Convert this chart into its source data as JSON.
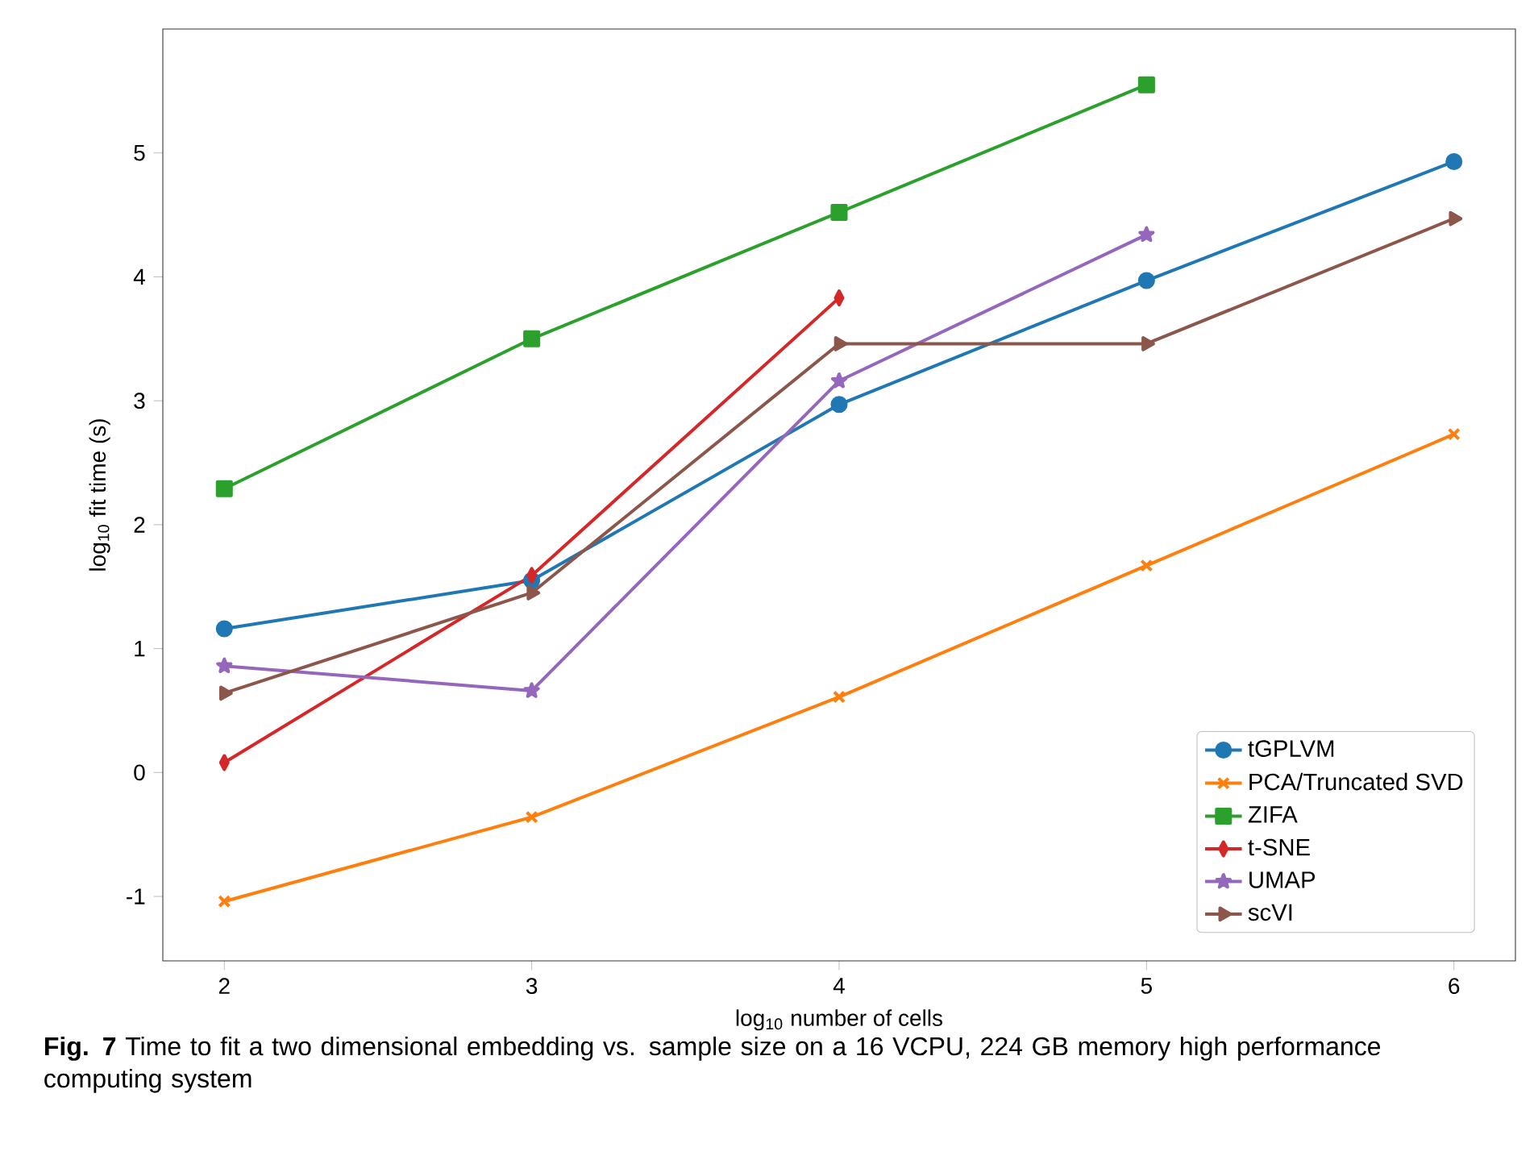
{
  "chart_data": {
    "type": "line",
    "xlabel": "log$_{10}$ number of cells",
    "ylabel": "log$_{10}$ fit time (s)",
    "annotations": [
      "**Fig. 7** Time to fit a two dimensional embedding vs. sample size on a 16 VCPU, 224 GB memory high performance computing system"
    ],
    "x": [
      2,
      3,
      4,
      5,
      6
    ],
    "series": [
      {
        "name": "tGPLVM",
        "color": "#1f77b4",
        "marker": "circle",
        "values": [
          1.16,
          1.55,
          2.97,
          3.97,
          4.93
        ]
      },
      {
        "name": "PCA/Truncated SVD",
        "color": "#ff7f0e",
        "marker": "cross",
        "values": [
          -1.04,
          -0.36,
          0.61,
          1.67,
          2.73
        ]
      },
      {
        "name": "ZIFA",
        "color": "#2ca02c",
        "marker": "square",
        "values": [
          2.29,
          3.5,
          4.52,
          5.55,
          null
        ]
      },
      {
        "name": "t-SNE",
        "color": "#d62728",
        "marker": "diamond",
        "values": [
          0.08,
          1.59,
          3.83,
          null,
          null
        ]
      },
      {
        "name": "UMAP",
        "color": "#9467bd",
        "marker": "star",
        "values": [
          0.86,
          0.66,
          3.16,
          4.34,
          null
        ]
      },
      {
        "name": "scVI",
        "color": "#8c564b",
        "marker": "triangle",
        "values": [
          0.64,
          1.45,
          3.46,
          3.46,
          4.47
        ]
      }
    ],
    "xlim": [
      1.8,
      6.2
    ],
    "ylim": [
      -1.52,
      6.0
    ],
    "xticks": [
      2,
      3,
      4,
      5,
      6
    ],
    "yticks": [
      -1,
      0,
      1,
      2,
      3,
      4,
      5
    ],
    "legend": "bottom right"
  }
}
